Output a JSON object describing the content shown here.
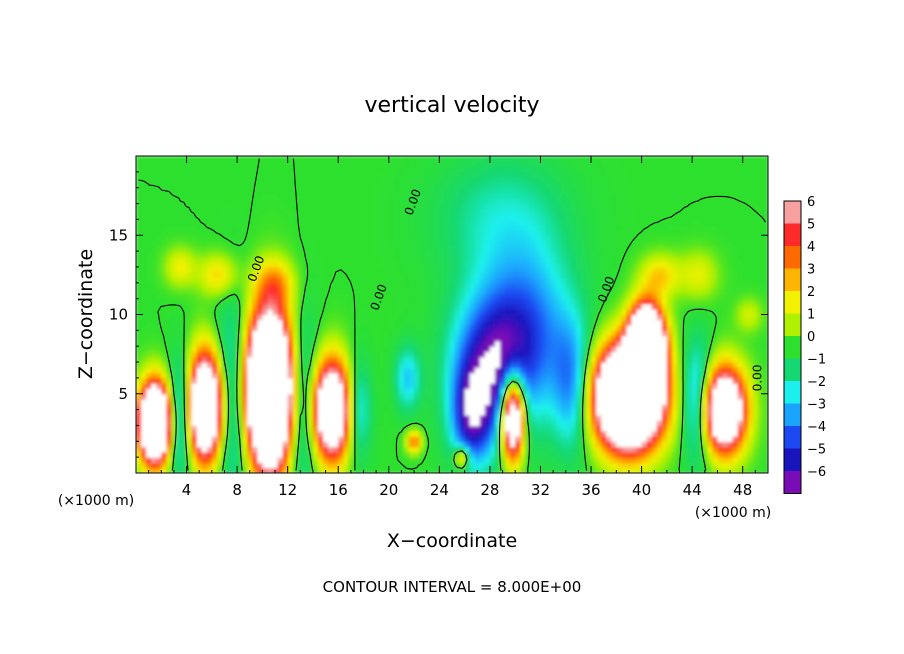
{
  "chart_data": {
    "type": "heatmap",
    "title": "vertical velocity",
    "xlabel": "X−coordinate",
    "ylabel": "Z−coordinate",
    "x_unit_left": "(×1000 m)",
    "x_unit_right": "(×1000 m)",
    "footer": "CONTOUR INTERVAL = 8.000E+00",
    "xlim": [
      0,
      50
    ],
    "ylim": [
      0,
      20
    ],
    "x_ticks": [
      "4",
      "8",
      "12",
      "16",
      "20",
      "24",
      "28",
      "32",
      "36",
      "40",
      "44",
      "48"
    ],
    "y_ticks": [
      "5",
      "10",
      "15"
    ],
    "contour_labels": [
      "0.00",
      "0.00",
      "0.00",
      "0.00",
      "0.00"
    ],
    "colorbar": {
      "ticks": [
        "6",
        "5",
        "4",
        "3",
        "2",
        "1",
        "0",
        "−1",
        "−2",
        "−3",
        "−4",
        "−5",
        "−6"
      ],
      "colors": [
        "#f6a0a0",
        "#ff2a2a",
        "#ff6a00",
        "#ffb400",
        "#f2f200",
        "#b0f000",
        "#2ee02e",
        "#16d873",
        "#1cf0ee",
        "#1aa3ff",
        "#1c49f2",
        "#1a14bd",
        "#7a0cb8"
      ]
    },
    "features": [
      {
        "x": 1.5,
        "z": 3.2,
        "rx": 1.2,
        "rz": 2.4,
        "w": 16
      },
      {
        "x": 5.5,
        "z": 4.2,
        "rx": 1.3,
        "rz": 3.2,
        "w": 14
      },
      {
        "x": 10.5,
        "z": 5.2,
        "rx": 1.9,
        "rz": 4.6,
        "w": 20
      },
      {
        "x": 15.5,
        "z": 4.0,
        "rx": 1.5,
        "rz": 3.0,
        "w": 12
      },
      {
        "x": 29.8,
        "z": 3.5,
        "rx": 0.9,
        "rz": 2.6,
        "w": 12
      },
      {
        "x": 39.0,
        "z": 4.8,
        "rx": 2.5,
        "rz": 3.0,
        "w": 20
      },
      {
        "x": 40.4,
        "z": 8.0,
        "rx": 1.3,
        "rz": 2.4,
        "w": 18
      },
      {
        "x": 46.5,
        "z": 4.0,
        "rx": 1.7,
        "rz": 2.6,
        "w": 12
      },
      {
        "x": 8.0,
        "z": 4.8,
        "rx": 1.6,
        "rz": 5.5,
        "w": -4
      },
      {
        "x": 13.0,
        "z": 4.5,
        "rx": 1.3,
        "rz": 5.0,
        "w": -4
      },
      {
        "x": 3.5,
        "z": 3.5,
        "rx": 1.0,
        "rz": 3.5,
        "w": -3.5
      },
      {
        "x": 28.0,
        "z": 6.5,
        "rx": 3.0,
        "rz": 4.5,
        "w": -5
      },
      {
        "x": 31.0,
        "z": 9.0,
        "rx": 3.5,
        "rz": 5.0,
        "w": -3.5
      },
      {
        "x": 26.5,
        "z": 3.5,
        "rx": 1.5,
        "rz": 3.0,
        "w": -4
      },
      {
        "x": 34.5,
        "z": 5.5,
        "rx": 1.5,
        "rz": 4.0,
        "w": -3
      },
      {
        "x": 44.5,
        "z": 4.5,
        "rx": 1.2,
        "rz": 3.5,
        "w": -4
      },
      {
        "x": 17.5,
        "z": 4.0,
        "rx": 1.0,
        "rz": 3.0,
        "w": -3
      },
      {
        "x": 21.5,
        "z": 6.0,
        "rx": 1.0,
        "rz": 2.0,
        "w": -2.5
      },
      {
        "x": 29.0,
        "z": 16.0,
        "rx": 5.0,
        "rz": 4.0,
        "w": -1.6
      },
      {
        "x": 22.0,
        "z": 2.0,
        "rx": 0.6,
        "rz": 0.7,
        "w": 4
      },
      {
        "x": 25.8,
        "z": 1.0,
        "rx": 0.6,
        "rz": 0.7,
        "w": 4
      },
      {
        "x": 6.5,
        "z": 12.5,
        "rx": 1.5,
        "rz": 1.3,
        "w": 2.5
      },
      {
        "x": 3.5,
        "z": 13.0,
        "rx": 1.2,
        "rz": 1.2,
        "w": 2.0
      },
      {
        "x": 41.5,
        "z": 12.5,
        "rx": 1.5,
        "rz": 1.3,
        "w": 2.5
      },
      {
        "x": 44.5,
        "z": 12.5,
        "rx": 1.5,
        "rz": 1.5,
        "w": 1.8
      },
      {
        "x": 48.5,
        "z": 10.0,
        "rx": 1.0,
        "rz": 1.0,
        "w": 1.5
      },
      {
        "x": 11.0,
        "z": 12.0,
        "rx": 1.5,
        "rz": 1.5,
        "w": 2.5
      }
    ]
  }
}
